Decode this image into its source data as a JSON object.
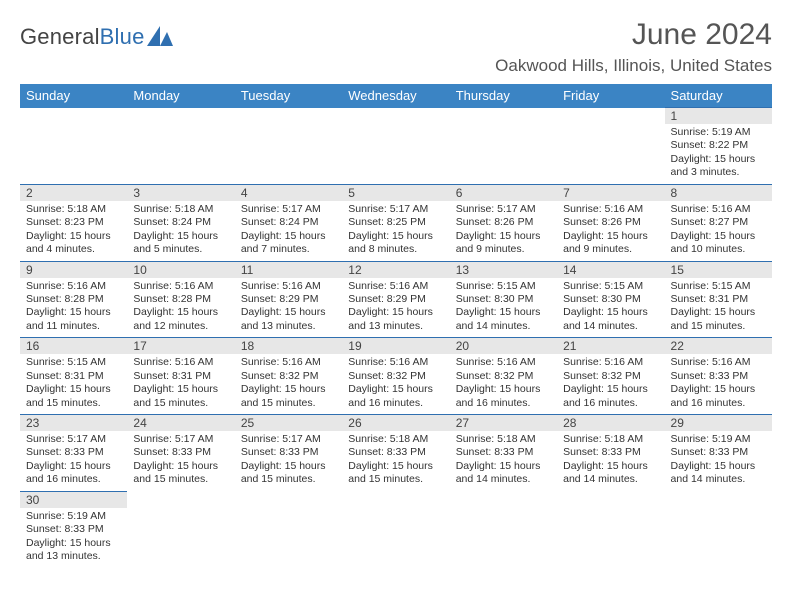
{
  "logo": {
    "word1": "General",
    "word2": "Blue",
    "tri_color": "#2f6fb0",
    "text_color": "#444"
  },
  "title": "June 2024",
  "location": "Oakwood Hills, Illinois, United States",
  "colors": {
    "header_bg": "#3b84c4",
    "header_text": "#ffffff",
    "row_border": "#2f6fb0",
    "daynum_bg": "#e7e7e7",
    "text": "#333333"
  },
  "day_headers": [
    "Sunday",
    "Monday",
    "Tuesday",
    "Wednesday",
    "Thursday",
    "Friday",
    "Saturday"
  ],
  "weeks": [
    [
      null,
      null,
      null,
      null,
      null,
      null,
      {
        "n": "1",
        "sr": "Sunrise: 5:19 AM",
        "ss": "Sunset: 8:22 PM",
        "dl": "Daylight: 15 hours and 3 minutes."
      }
    ],
    [
      {
        "n": "2",
        "sr": "Sunrise: 5:18 AM",
        "ss": "Sunset: 8:23 PM",
        "dl": "Daylight: 15 hours and 4 minutes."
      },
      {
        "n": "3",
        "sr": "Sunrise: 5:18 AM",
        "ss": "Sunset: 8:24 PM",
        "dl": "Daylight: 15 hours and 5 minutes."
      },
      {
        "n": "4",
        "sr": "Sunrise: 5:17 AM",
        "ss": "Sunset: 8:24 PM",
        "dl": "Daylight: 15 hours and 7 minutes."
      },
      {
        "n": "5",
        "sr": "Sunrise: 5:17 AM",
        "ss": "Sunset: 8:25 PM",
        "dl": "Daylight: 15 hours and 8 minutes."
      },
      {
        "n": "6",
        "sr": "Sunrise: 5:17 AM",
        "ss": "Sunset: 8:26 PM",
        "dl": "Daylight: 15 hours and 9 minutes."
      },
      {
        "n": "7",
        "sr": "Sunrise: 5:16 AM",
        "ss": "Sunset: 8:26 PM",
        "dl": "Daylight: 15 hours and 9 minutes."
      },
      {
        "n": "8",
        "sr": "Sunrise: 5:16 AM",
        "ss": "Sunset: 8:27 PM",
        "dl": "Daylight: 15 hours and 10 minutes."
      }
    ],
    [
      {
        "n": "9",
        "sr": "Sunrise: 5:16 AM",
        "ss": "Sunset: 8:28 PM",
        "dl": "Daylight: 15 hours and 11 minutes."
      },
      {
        "n": "10",
        "sr": "Sunrise: 5:16 AM",
        "ss": "Sunset: 8:28 PM",
        "dl": "Daylight: 15 hours and 12 minutes."
      },
      {
        "n": "11",
        "sr": "Sunrise: 5:16 AM",
        "ss": "Sunset: 8:29 PM",
        "dl": "Daylight: 15 hours and 13 minutes."
      },
      {
        "n": "12",
        "sr": "Sunrise: 5:16 AM",
        "ss": "Sunset: 8:29 PM",
        "dl": "Daylight: 15 hours and 13 minutes."
      },
      {
        "n": "13",
        "sr": "Sunrise: 5:15 AM",
        "ss": "Sunset: 8:30 PM",
        "dl": "Daylight: 15 hours and 14 minutes."
      },
      {
        "n": "14",
        "sr": "Sunrise: 5:15 AM",
        "ss": "Sunset: 8:30 PM",
        "dl": "Daylight: 15 hours and 14 minutes."
      },
      {
        "n": "15",
        "sr": "Sunrise: 5:15 AM",
        "ss": "Sunset: 8:31 PM",
        "dl": "Daylight: 15 hours and 15 minutes."
      }
    ],
    [
      {
        "n": "16",
        "sr": "Sunrise: 5:15 AM",
        "ss": "Sunset: 8:31 PM",
        "dl": "Daylight: 15 hours and 15 minutes."
      },
      {
        "n": "17",
        "sr": "Sunrise: 5:16 AM",
        "ss": "Sunset: 8:31 PM",
        "dl": "Daylight: 15 hours and 15 minutes."
      },
      {
        "n": "18",
        "sr": "Sunrise: 5:16 AM",
        "ss": "Sunset: 8:32 PM",
        "dl": "Daylight: 15 hours and 15 minutes."
      },
      {
        "n": "19",
        "sr": "Sunrise: 5:16 AM",
        "ss": "Sunset: 8:32 PM",
        "dl": "Daylight: 15 hours and 16 minutes."
      },
      {
        "n": "20",
        "sr": "Sunrise: 5:16 AM",
        "ss": "Sunset: 8:32 PM",
        "dl": "Daylight: 15 hours and 16 minutes."
      },
      {
        "n": "21",
        "sr": "Sunrise: 5:16 AM",
        "ss": "Sunset: 8:32 PM",
        "dl": "Daylight: 15 hours and 16 minutes."
      },
      {
        "n": "22",
        "sr": "Sunrise: 5:16 AM",
        "ss": "Sunset: 8:33 PM",
        "dl": "Daylight: 15 hours and 16 minutes."
      }
    ],
    [
      {
        "n": "23",
        "sr": "Sunrise: 5:17 AM",
        "ss": "Sunset: 8:33 PM",
        "dl": "Daylight: 15 hours and 16 minutes."
      },
      {
        "n": "24",
        "sr": "Sunrise: 5:17 AM",
        "ss": "Sunset: 8:33 PM",
        "dl": "Daylight: 15 hours and 15 minutes."
      },
      {
        "n": "25",
        "sr": "Sunrise: 5:17 AM",
        "ss": "Sunset: 8:33 PM",
        "dl": "Daylight: 15 hours and 15 minutes."
      },
      {
        "n": "26",
        "sr": "Sunrise: 5:18 AM",
        "ss": "Sunset: 8:33 PM",
        "dl": "Daylight: 15 hours and 15 minutes."
      },
      {
        "n": "27",
        "sr": "Sunrise: 5:18 AM",
        "ss": "Sunset: 8:33 PM",
        "dl": "Daylight: 15 hours and 14 minutes."
      },
      {
        "n": "28",
        "sr": "Sunrise: 5:18 AM",
        "ss": "Sunset: 8:33 PM",
        "dl": "Daylight: 15 hours and 14 minutes."
      },
      {
        "n": "29",
        "sr": "Sunrise: 5:19 AM",
        "ss": "Sunset: 8:33 PM",
        "dl": "Daylight: 15 hours and 14 minutes."
      }
    ],
    [
      {
        "n": "30",
        "sr": "Sunrise: 5:19 AM",
        "ss": "Sunset: 8:33 PM",
        "dl": "Daylight: 15 hours and 13 minutes."
      },
      null,
      null,
      null,
      null,
      null,
      null
    ]
  ]
}
